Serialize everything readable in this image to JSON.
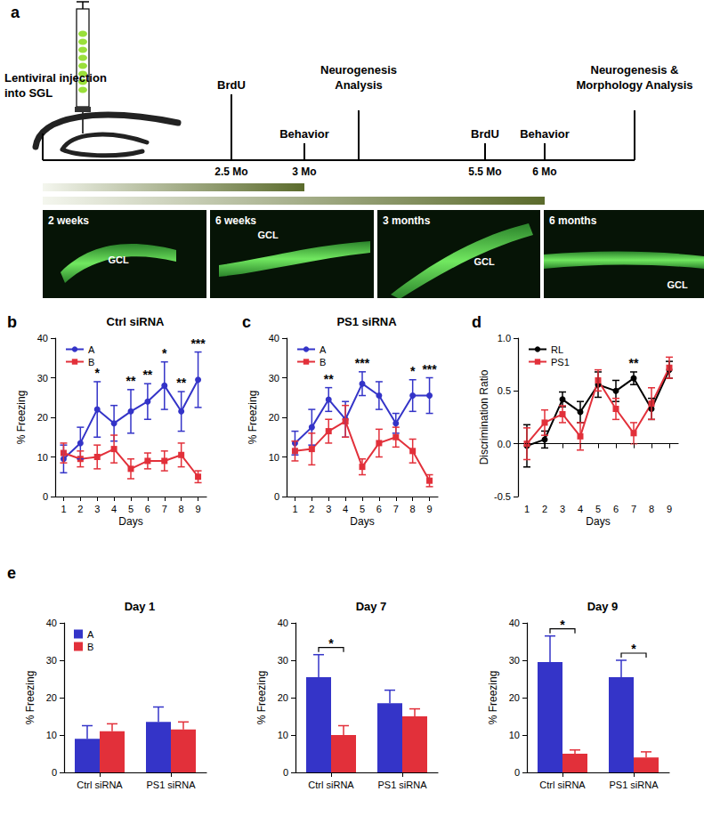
{
  "diagram": {
    "panel_label": "a",
    "events": [
      {
        "label": "Lentiviral injection into SGL"
      },
      {
        "label": "BrdU",
        "time": "2.5 Mo"
      },
      {
        "label": "Behavior",
        "time": "3 Mo"
      },
      {
        "label": "Neurogenesis Analysis"
      },
      {
        "label": "BrdU",
        "time": "5.5 Mo"
      },
      {
        "label": "Behavior",
        "time": "6 Mo"
      },
      {
        "label": "Neurogenesis & Morphology Analysis"
      }
    ],
    "images": [
      {
        "label": "2 weeks",
        "region": "GCL"
      },
      {
        "label": "6 weeks",
        "region": "GCL"
      },
      {
        "label": "3 months",
        "region": "GCL"
      },
      {
        "label": "6 months",
        "region": "GCL"
      }
    ]
  },
  "chart_data": [
    {
      "type": "line",
      "panel_label": "b",
      "title": "Ctrl siRNA",
      "x_label": "Days",
      "y_label": "% Freezing",
      "categories": [
        "1",
        "2",
        "3",
        "4",
        "5",
        "6",
        "7",
        "8",
        "9"
      ],
      "ylim": [
        0,
        40
      ],
      "yticks": [
        0,
        10,
        20,
        30,
        40
      ],
      "grid": false,
      "legend": "upper left",
      "series": [
        {
          "name": "A",
          "color": "#3434c8",
          "marker": "circle",
          "values": [
            9.5,
            13.5,
            22,
            18.5,
            21.5,
            24,
            28,
            21.5,
            29.5
          ],
          "errors": [
            3.5,
            4,
            7,
            4.5,
            5.5,
            4.5,
            6,
            5,
            7
          ]
        },
        {
          "name": "B",
          "color": "#e2303a",
          "marker": "square",
          "values": [
            11,
            9.5,
            10,
            12,
            7,
            9,
            9,
            10.5,
            5
          ],
          "errors": [
            2.5,
            2,
            3,
            3.5,
            2.5,
            2,
            2.5,
            3,
            1.5
          ]
        }
      ],
      "annotations": [
        {
          "x": "3",
          "text": "*"
        },
        {
          "x": "5",
          "text": "**"
        },
        {
          "x": "6",
          "text": "**"
        },
        {
          "x": "7",
          "text": "*"
        },
        {
          "x": "8",
          "text": "**"
        },
        {
          "x": "9",
          "text": "***"
        }
      ]
    },
    {
      "type": "line",
      "panel_label": "c",
      "title": "PS1 siRNA",
      "x_label": "Days",
      "y_label": "% Freezing",
      "categories": [
        "1",
        "2",
        "3",
        "4",
        "5",
        "6",
        "7",
        "8",
        "9"
      ],
      "ylim": [
        0,
        40
      ],
      "yticks": [
        0,
        10,
        20,
        30,
        40
      ],
      "grid": false,
      "legend": "upper left",
      "series": [
        {
          "name": "A",
          "color": "#3434c8",
          "marker": "circle",
          "values": [
            13.5,
            17.5,
            24.5,
            19.5,
            28.5,
            25.5,
            18.5,
            25.5,
            25.5
          ],
          "errors": [
            3,
            4.5,
            3,
            4.5,
            3,
            3.5,
            2.5,
            4,
            4.5
          ]
        },
        {
          "name": "B",
          "color": "#e2303a",
          "marker": "square",
          "values": [
            11.5,
            12,
            16.5,
            19,
            7.5,
            13.5,
            15,
            11.5,
            4
          ],
          "errors": [
            2.5,
            4,
            3,
            4,
            2,
            3.5,
            2.5,
            3,
            1.5
          ]
        }
      ],
      "annotations": [
        {
          "x": "3",
          "text": "**"
        },
        {
          "x": "5",
          "text": "***"
        },
        {
          "x": "8",
          "text": "*"
        },
        {
          "x": "9",
          "text": "***"
        }
      ]
    },
    {
      "type": "line",
      "panel_label": "d",
      "x_label": "Days",
      "y_label": "Discrimination Ratio",
      "categories": [
        "1",
        "2",
        "3",
        "4",
        "5",
        "6",
        "7",
        "8",
        "9"
      ],
      "ylim": [
        -0.5,
        1
      ],
      "yticks": [
        -0.5,
        {
          "value": 0,
          "label": "0.0"
        },
        0.5,
        {
          "value": 1,
          "label": "1.0"
        }
      ],
      "grid": false,
      "legend": "upper left",
      "reference_lines": [
        {
          "y": 0,
          "line_style": "dotted"
        }
      ],
      "series": [
        {
          "name": "RL",
          "color": "#000000",
          "marker": "circle",
          "values": [
            -0.02,
            0.04,
            0.42,
            0.3,
            0.56,
            0.5,
            0.62,
            0.33,
            0.7
          ],
          "errors": [
            0.2,
            0.08,
            0.07,
            0.1,
            0.12,
            0.1,
            0.06,
            0.1,
            0.08
          ]
        },
        {
          "name": "PS1",
          "color": "#e2303a",
          "marker": "square",
          "values": [
            0,
            0.2,
            0.28,
            0.07,
            0.6,
            0.33,
            0.1,
            0.38,
            0.72
          ],
          "errors": [
            0.15,
            0.12,
            0.08,
            0.13,
            0.1,
            0.1,
            0.1,
            0.15,
            0.1
          ]
        }
      ],
      "annotations": [
        {
          "x": "7",
          "text": "**"
        }
      ]
    },
    {
      "type": "bar",
      "panel_label": "e",
      "title": "Day 1",
      "y_label": "% Freezing",
      "categories": [
        "Ctrl siRNA",
        "PS1 siRNA"
      ],
      "ylim": [
        0,
        40
      ],
      "yticks": [
        0,
        10,
        20,
        30,
        40
      ],
      "grid": false,
      "legend": "upper left",
      "series": [
        {
          "name": "A",
          "color": "#3434c8",
          "values": [
            9,
            13.5
          ],
          "errors": [
            3.5,
            4
          ]
        },
        {
          "name": "B",
          "color": "#e2303a",
          "values": [
            11,
            11.5
          ],
          "errors": [
            2,
            2
          ]
        }
      ],
      "annotations": []
    },
    {
      "type": "bar",
      "title": "Day 7",
      "y_label": "% Freezing",
      "categories": [
        "Ctrl siRNA",
        "PS1 siRNA"
      ],
      "ylim": [
        0,
        40
      ],
      "yticks": [
        0,
        10,
        20,
        30,
        40
      ],
      "grid": false,
      "series": [
        {
          "name": "A",
          "color": "#3434c8",
          "values": [
            25.5,
            18.5
          ],
          "errors": [
            6,
            3.5
          ]
        },
        {
          "name": "B",
          "color": "#e2303a",
          "values": [
            10,
            15
          ],
          "errors": [
            2.5,
            2
          ]
        }
      ],
      "annotations": [
        {
          "x": "Ctrl siRNA",
          "text": "*"
        }
      ]
    },
    {
      "type": "bar",
      "title": "Day 9",
      "y_label": "% Freezing",
      "categories": [
        "Ctrl siRNA",
        "PS1 siRNA"
      ],
      "ylim": [
        0,
        40
      ],
      "yticks": [
        0,
        10,
        20,
        30,
        40
      ],
      "grid": false,
      "series": [
        {
          "name": "A",
          "color": "#3434c8",
          "values": [
            29.5,
            25.5
          ],
          "errors": [
            7,
            4.5
          ]
        },
        {
          "name": "B",
          "color": "#e2303a",
          "values": [
            5,
            4
          ],
          "errors": [
            1,
            1.5
          ]
        }
      ],
      "annotations": [
        {
          "x": "Ctrl siRNA",
          "text": "*"
        },
        {
          "x": "PS1 siRNA",
          "text": "*"
        }
      ]
    }
  ]
}
